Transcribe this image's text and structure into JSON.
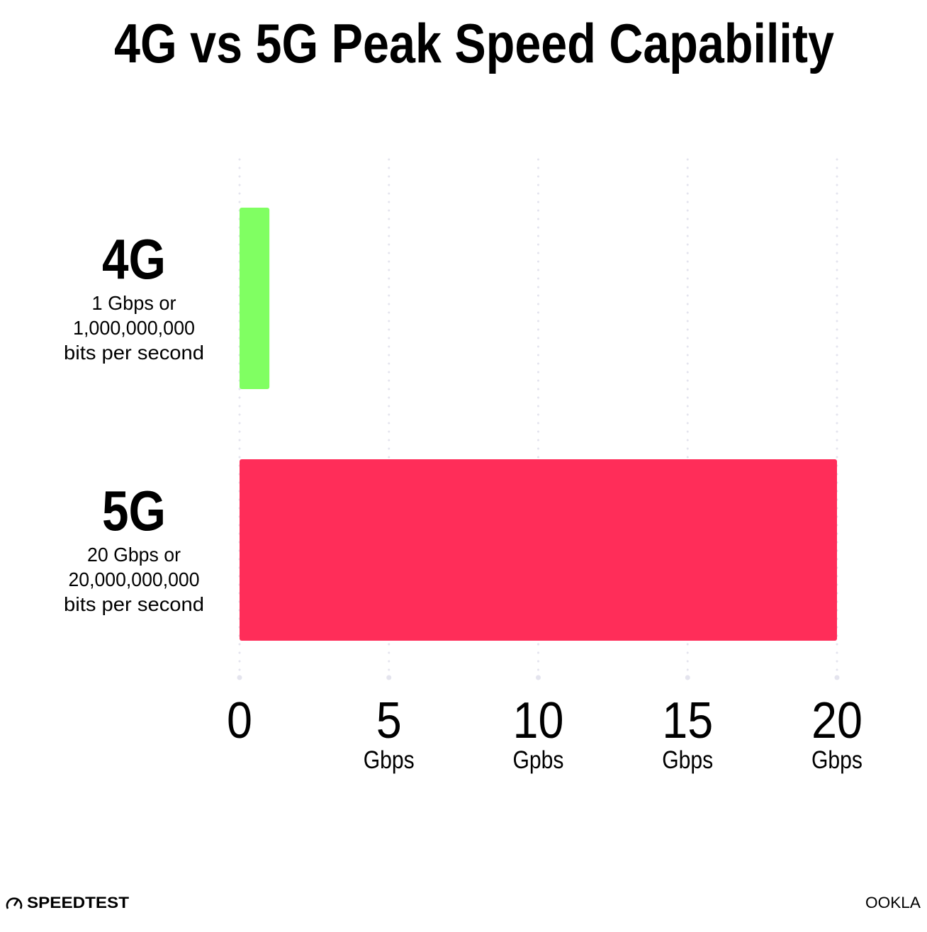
{
  "chart_data": {
    "type": "bar",
    "orientation": "horizontal",
    "title": "4G vs 5G Peak Speed Capability",
    "categories": [
      {
        "name": "4G",
        "desc": [
          "1 Gbps or",
          "1,000,000,000",
          "bits per second"
        ]
      },
      {
        "name": "5G",
        "desc": [
          "20 Gbps or",
          "20,000,000,000",
          "bits per second"
        ]
      }
    ],
    "values": [
      1,
      20
    ],
    "colors": [
      "#80ff62",
      "#ff2d59"
    ],
    "xlim": [
      0,
      20
    ],
    "xticks": [
      {
        "value": 0,
        "label": "0",
        "unit": ""
      },
      {
        "value": 5,
        "label": "5",
        "unit": "Gbps"
      },
      {
        "value": 10,
        "label": "10",
        "unit": "Gpbs"
      },
      {
        "value": 15,
        "label": "15",
        "unit": "Gbps"
      },
      {
        "value": 20,
        "label": "20",
        "unit": "Gbps"
      }
    ],
    "grid": true,
    "grid_color": "#e4e4ee"
  },
  "branding": {
    "left_logo": "SPEEDTEST",
    "right_logo": "OOKLA"
  }
}
